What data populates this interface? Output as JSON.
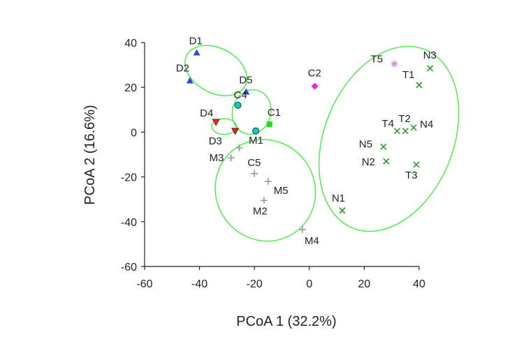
{
  "chart_data": {
    "type": "scatter",
    "xlabel": "PCoA 1 (32.2%)",
    "ylabel": "PCoA 2 (16.6%)",
    "xlim": [
      -60,
      40
    ],
    "ylim": [
      -60,
      40
    ],
    "xticks": [
      "-60",
      "-40",
      "-20",
      "0",
      "20",
      "40"
    ],
    "yticks": [
      "40",
      "20",
      "0",
      "-20",
      "-40",
      "-60"
    ],
    "grid": false,
    "points": [
      {
        "label": "D1",
        "x": -41,
        "y": 35.5,
        "marker": "triangle-up",
        "color": "#3344dd"
      },
      {
        "label": "D2",
        "x": -43.5,
        "y": 23,
        "marker": "triangle-up",
        "color": "#3344dd"
      },
      {
        "label": "D5",
        "x": -23,
        "y": 18,
        "marker": "triangle-up",
        "color": "#3344dd"
      },
      {
        "label": "C2",
        "x": 2,
        "y": 20.5,
        "marker": "diamond",
        "color": "#ee22dd"
      },
      {
        "label": "C4",
        "x": -26,
        "y": 12,
        "marker": "circle",
        "color": "#00cccc"
      },
      {
        "label": "C1",
        "x": -14.5,
        "y": 3.5,
        "marker": "square",
        "color": "#22dd22"
      },
      {
        "label": "M1",
        "x": -19.5,
        "y": 0.5,
        "marker": "circle",
        "color": "#00cccc"
      },
      {
        "label": "D4",
        "x": -34,
        "y": 4.5,
        "marker": "triangle-down",
        "color": "#ee2222"
      },
      {
        "label": "D3",
        "x": -27,
        "y": 0.5,
        "marker": "triangle-down",
        "color": "#bb3311"
      },
      {
        "label": "M3",
        "x": -25.5,
        "y": -7,
        "marker": "plus",
        "color": "#999999"
      },
      {
        "label": "",
        "x": -28.5,
        "y": -11.5,
        "marker": "plus",
        "color": "#999999"
      },
      {
        "label": "C5",
        "x": -20,
        "y": -18.5,
        "marker": "plus",
        "color": "#999999"
      },
      {
        "label": "M5",
        "x": -15,
        "y": -22,
        "marker": "plus",
        "color": "#999999"
      },
      {
        "label": "M2",
        "x": -16.5,
        "y": -30.5,
        "marker": "plus",
        "color": "#999999"
      },
      {
        "label": "M4",
        "x": -2.5,
        "y": -43.5,
        "marker": "plus",
        "color": "#999999"
      },
      {
        "label": "T5",
        "x": 31,
        "y": 30.5,
        "marker": "star",
        "color": "#dd88dd"
      },
      {
        "label": "N3",
        "x": 44,
        "y": 28.5,
        "marker": "x",
        "color": "#2a9a2a"
      },
      {
        "label": "T1",
        "x": 40,
        "y": 21,
        "marker": "x",
        "color": "#2a9a2a"
      },
      {
        "label": "T4",
        "x": 32,
        "y": 0.5,
        "marker": "x",
        "color": "#2a9a2a"
      },
      {
        "label": "T2",
        "x": 35,
        "y": 0.5,
        "marker": "x",
        "color": "#2a9a2a"
      },
      {
        "label": "N4",
        "x": 38,
        "y": 2,
        "marker": "x",
        "color": "#2a9a2a"
      },
      {
        "label": "N5",
        "x": 27,
        "y": -6.5,
        "marker": "x",
        "color": "#2a9a2a"
      },
      {
        "label": "N2",
        "x": 28,
        "y": -13,
        "marker": "x",
        "color": "#2a9a2a"
      },
      {
        "label": "T3",
        "x": 39,
        "y": -14.5,
        "marker": "x",
        "color": "#2a9a2a"
      },
      {
        "label": "N1",
        "x": 12,
        "y": -35,
        "marker": "x",
        "color": "#2a9a2a"
      }
    ],
    "ellipses": [
      {
        "cx": -34,
        "cy": 27.5,
        "rx": 12,
        "ry": 10,
        "rotation_deg": 28,
        "color": "#44ee44"
      },
      {
        "cx": -21,
        "cy": 9,
        "rx": 7,
        "ry": 10,
        "rotation_deg": 15,
        "color": "#44ee44"
      },
      {
        "cx": -31,
        "cy": 2.5,
        "rx": 4.5,
        "ry": 3.5,
        "rotation_deg": 0,
        "color": "#44ee44"
      },
      {
        "cx": -16,
        "cy": -26,
        "rx": 18,
        "ry": 23,
        "rotation_deg": -35,
        "color": "#44ee44"
      },
      {
        "cx": 29,
        "cy": -3,
        "rx": 23.5,
        "ry": 43,
        "rotation_deg": 22,
        "color": "#44ee44"
      }
    ]
  }
}
